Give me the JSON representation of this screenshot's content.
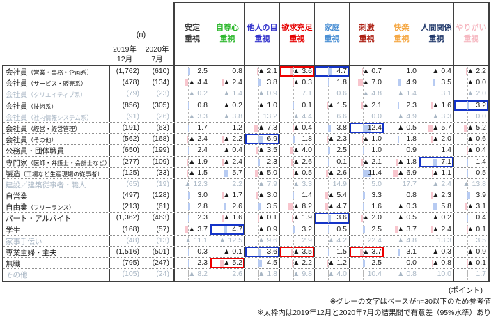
{
  "chart_data": {
    "type": "table",
    "n_header": "(n)",
    "wave_labels": [
      "2019年\n12月",
      "2020年\n7月"
    ],
    "categories": [
      {
        "label": "安定\n重視",
        "color": "#3f3f3f"
      },
      {
        "label": "自尊心\n重視",
        "color": "#2eb82e"
      },
      {
        "label": "他人の目\n重視",
        "color": "#3333cc"
      },
      {
        "label": "欲求充足\n重視",
        "color": "#e60000"
      },
      {
        "label": "家庭\n重視",
        "color": "#4a8fd4"
      },
      {
        "label": "刺激\n重視",
        "color": "#ad2013"
      },
      {
        "label": "快楽\n重視",
        "color": "#f5a742"
      },
      {
        "label": "人間関係\n重視",
        "color": "#20386a"
      },
      {
        "label": "やりがい\n重視",
        "color": "#f6b8c1"
      }
    ],
    "rows": [
      {
        "label": "会社員",
        "sub": "（営業・事務・企画系）",
        "n": [
          "(1,762)",
          "(610)"
        ],
        "gray": false,
        "values": [
          "2.5",
          "0.8",
          "-2.1",
          "-3.6",
          "4.7",
          "-0.7",
          "1.0",
          "-0.4",
          "-2.2"
        ],
        "boxes": {
          "3": "red",
          "4": "blue"
        }
      },
      {
        "label": "会社員",
        "sub": "（サービス・販売系）",
        "n": [
          "(478)",
          "(134)"
        ],
        "gray": false,
        "values": [
          "-4.4",
          "-2.4",
          "3.8",
          "-0.3",
          "1.8",
          "-7.0",
          "4.9",
          "3.5",
          "-0.0"
        ],
        "boxes": {}
      },
      {
        "label": "会社員",
        "sub": "（クリエイティブ系）",
        "n": [
          "(79)",
          "(23)"
        ],
        "gray": true,
        "values": [
          "-0.2",
          "-1.4",
          "-0.9",
          "7.1",
          "0.6",
          "-4.8",
          "-1.4",
          "3.1",
          "-2.0"
        ],
        "boxes": {}
      },
      {
        "label": "会社員",
        "sub": "（技術系）",
        "n": [
          "(856)",
          "(305)"
        ],
        "gray": false,
        "values": [
          "0.8",
          "-0.2",
          "-1.0",
          "0.1",
          "-1.5",
          "-2.1",
          "2.3",
          "-1.6",
          "3.2"
        ],
        "boxes": {
          "8": "blue"
        }
      },
      {
        "label": "会社員",
        "sub": "（社内情報システム系）",
        "n": [
          "(91)",
          "(26)"
        ],
        "gray": true,
        "values": [
          "-3.3",
          "-3.8",
          "13.2",
          "-4.4",
          "6.6",
          "0.0",
          "-4.9",
          "-3.3",
          "0.0"
        ],
        "boxes": {}
      },
      {
        "label": "会社員",
        "sub": "（経営・経営管理）",
        "n": [
          "(191)",
          "(63)"
        ],
        "gray": false,
        "values": [
          "1.7",
          "1.2",
          "-7.3",
          "-0.4",
          "3.8",
          "12.4",
          "-0.5",
          "-5.7",
          "-5.2"
        ],
        "boxes": {
          "5": "blue"
        }
      },
      {
        "label": "会社員",
        "sub": "（その他）",
        "n": [
          "(562)",
          "(168)"
        ],
        "gray": false,
        "values": [
          "-2.4",
          "-2.2",
          "6.9",
          "1.8",
          "-2.3",
          "-1.0",
          "1.8",
          "-2.0",
          "-0.6"
        ],
        "boxes": {
          "2": "blue"
        }
      },
      {
        "label": "公務員・団体職員",
        "sub": "",
        "n": [
          "(650)",
          "(199)"
        ],
        "gray": false,
        "values": [
          "2.4",
          "-0.4",
          "-3.5",
          "-4.0",
          "2.5",
          "1.0",
          "0.9",
          "1.4",
          "-0.4"
        ],
        "boxes": {}
      },
      {
        "label": "専門家",
        "sub": "（医師・弁護士・会計士など）",
        "n": [
          "(277)",
          "(109)"
        ],
        "gray": false,
        "values": [
          "-1.9",
          "-2.4",
          "2.3",
          "-2.6",
          "0.1",
          "-2.1",
          "-1.8",
          "7.1",
          "1.4"
        ],
        "boxes": {
          "7": "blue"
        }
      },
      {
        "label": "製造",
        "sub": "（工場など生産現場の従事者）",
        "n": [
          "(125)",
          "(33)"
        ],
        "gray": false,
        "values": [
          "-1.5",
          "5.7",
          "-5.0",
          "-0.5",
          "-2.6",
          "11.4",
          "-6.9",
          "-1.1",
          "0.5"
        ],
        "boxes": {}
      },
      {
        "label": "建設／建築従事者・職人",
        "sub": "",
        "n": [
          "(65)",
          "(19)"
        ],
        "gray": true,
        "values": [
          "-12.3",
          "2.2",
          "-7.9",
          "-3.3",
          "14.9",
          "5.0",
          "17.7",
          "-2.4",
          "-13.8"
        ],
        "boxes": {}
      },
      {
        "label": "自営業",
        "sub": "",
        "n": [
          "(497)",
          "(128)"
        ],
        "gray": false,
        "values": [
          "3.0",
          "-1.7",
          "-3.0",
          "1.4",
          "-5.4",
          "3.3",
          "0.8",
          "-2.3",
          "3.9"
        ],
        "boxes": {}
      },
      {
        "label": "自由業",
        "sub": "（フリーランス）",
        "n": [
          "(213)",
          "(61)"
        ],
        "gray": false,
        "values": [
          "2.8",
          "2.6",
          "3.5",
          "-8.2",
          "-4.7",
          "1.6",
          "-0.3",
          "5.8",
          "-3.1"
        ],
        "boxes": {}
      },
      {
        "label": "パート・アルバイト",
        "sub": "",
        "n": [
          "(1,362)",
          "(463)"
        ],
        "gray": false,
        "values": [
          "2.3",
          "-1.6",
          "-0.1",
          "-1.9",
          "3.6",
          "-2.0",
          "-0.5",
          "-0.2",
          "0.4"
        ],
        "boxes": {
          "4": "blue"
        }
      },
      {
        "label": "学生",
        "sub": "",
        "n": [
          "(168)",
          "(57)"
        ],
        "gray": false,
        "values": [
          "-3.7",
          "4.7",
          "-0.9",
          "3.2",
          "0.5",
          "2.5",
          "-3.7",
          "-2.4",
          "-0.1"
        ],
        "boxes": {
          "1": "blue"
        }
      },
      {
        "label": "家事手伝い",
        "sub": "",
        "n": [
          "(48)",
          "(13)"
        ],
        "gray": true,
        "values": [
          "-11.1",
          "-12.5",
          "-9.6",
          "2.9",
          "-4.2",
          "22.4",
          "-4.8",
          "13.3",
          "3.5"
        ],
        "boxes": {}
      },
      {
        "label": "専業主婦・主夫",
        "sub": "",
        "n": [
          "(1,516)",
          "(501)"
        ],
        "gray": false,
        "values": [
          "0.3",
          "-0.1",
          "3.6",
          "-3.5",
          "1.5",
          "-3.7",
          "3.1",
          "-0.3",
          "-0.9"
        ],
        "boxes": {
          "2": "blue",
          "3": "red",
          "5": "red"
        }
      },
      {
        "label": "無職",
        "sub": "",
        "n": [
          "(795)",
          "(247)"
        ],
        "gray": false,
        "values": [
          "2.3",
          "-5.2",
          "4.5",
          "-2.2",
          "-1.2",
          "2.5",
          "0.0",
          "-0.8",
          "-0.1"
        ],
        "boxes": {
          "1": "red"
        }
      },
      {
        "label": "その他",
        "sub": "",
        "n": [
          "(105)",
          "(24)"
        ],
        "gray": true,
        "values": [
          "-8.2",
          "2.6",
          "-1.8",
          "-9.8",
          "-4.0",
          "10.4",
          "-0.8",
          "10.0",
          "1.7"
        ],
        "boxes": {}
      }
    ],
    "negative_marker": "▲ ",
    "notes": {
      "unit": "(ポイント)",
      "note1": "※グレーの文字はベースがn=30以下のため参考値",
      "note2": "※太枠内は2019年12月と2020年7月の結果間で有意差（95%水準）あり"
    }
  },
  "colors": {
    "bar_positive": "#b7cbf2",
    "bar_negative": "#f8c5cd",
    "sig_increase_box": "#1434c8",
    "sig_decrease_box": "#ee0000",
    "gray_reference_text": "#a8b6c4",
    "grid_border": "#3f3f3f"
  }
}
